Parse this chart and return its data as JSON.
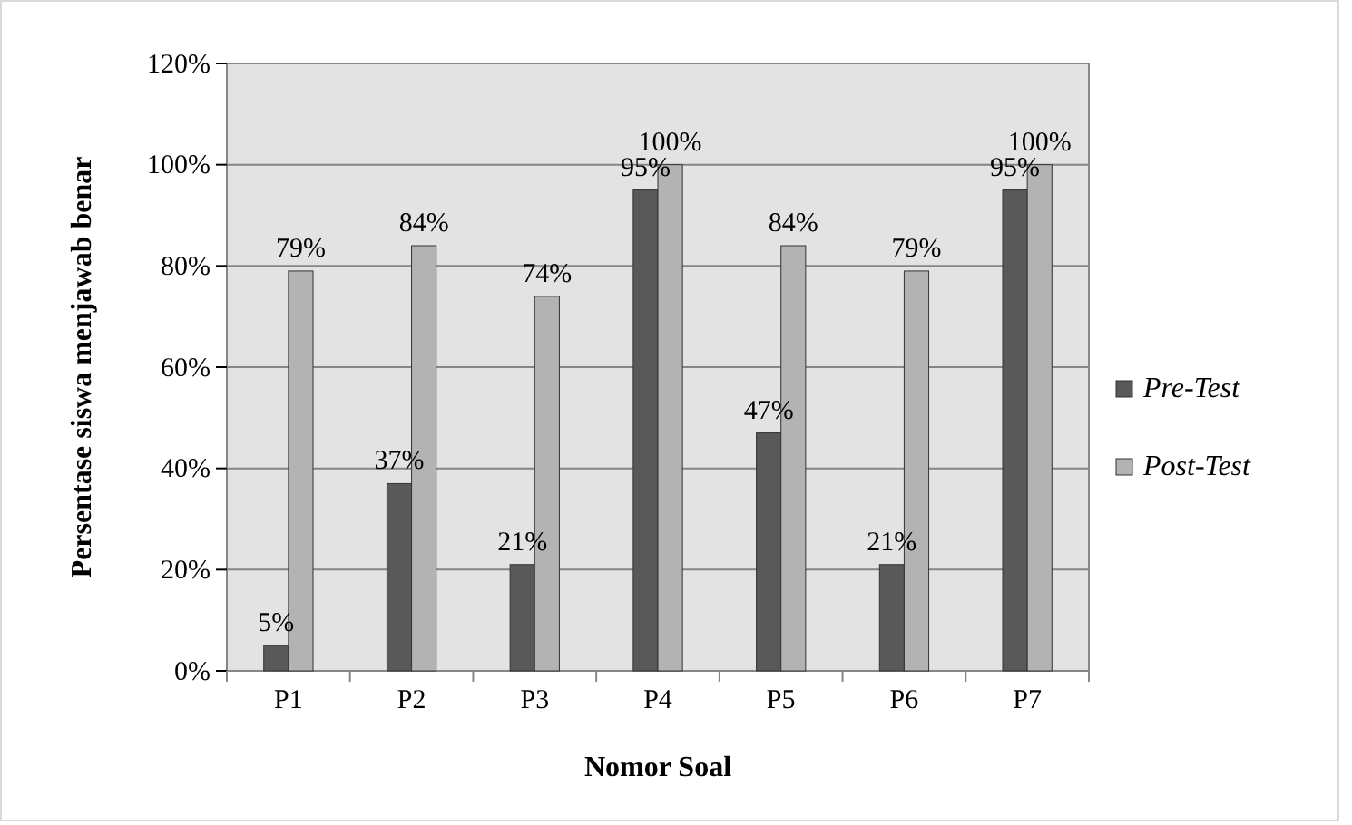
{
  "chart_data": {
    "type": "bar",
    "xlabel": "Nomor Soal",
    "ylabel": "Persentase siswa menjawab benar",
    "categories": [
      "P1",
      "P2",
      "P3",
      "P4",
      "P5",
      "P6",
      "P7"
    ],
    "series": [
      {
        "name": "Pre-Test",
        "color": "#595959",
        "values": [
          5,
          37,
          21,
          95,
          47,
          21,
          95
        ],
        "value_labels": [
          "5%",
          "37%",
          "21%",
          "95%",
          "47%",
          "21%",
          "95%"
        ]
      },
      {
        "name": "Post-Test",
        "color": "#b3b3b3",
        "values": [
          79,
          84,
          74,
          100,
          84,
          79,
          100
        ],
        "value_labels": [
          "79%",
          "84%",
          "74%",
          "100%",
          "84%",
          "79%",
          "100%"
        ]
      }
    ],
    "ylim": [
      0,
      120
    ],
    "yticks": [
      {
        "value": 0,
        "label": "0%"
      },
      {
        "value": 20,
        "label": "20%"
      },
      {
        "value": 40,
        "label": "40%"
      },
      {
        "value": 60,
        "label": "60%"
      },
      {
        "value": 80,
        "label": "80%"
      },
      {
        "value": 100,
        "label": "100%"
      },
      {
        "value": 120,
        "label": "120%"
      }
    ],
    "grid": "y",
    "legend": "right"
  }
}
